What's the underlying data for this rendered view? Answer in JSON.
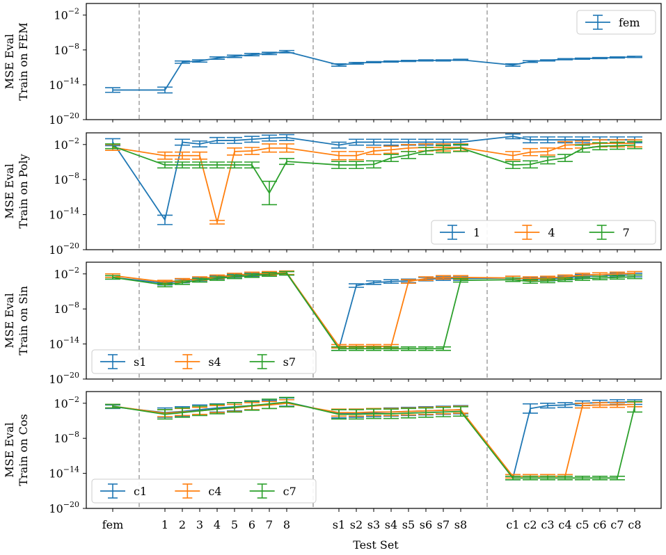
{
  "chart_data": {
    "type": "line",
    "xlabel": "Test Set",
    "x_ticks": [
      "fem",
      "1",
      "2",
      "3",
      "4",
      "5",
      "6",
      "7",
      "8",
      "s1",
      "s2",
      "s3",
      "s4",
      "s5",
      "s6",
      "s7",
      "s8",
      "c1",
      "c2",
      "c3",
      "c4",
      "c5",
      "c6",
      "c7",
      "c8"
    ],
    "y_ticks": [
      {
        "value": -20,
        "label": "10",
        "exp": "−20"
      },
      {
        "value": -14,
        "label": "10",
        "exp": "−14"
      },
      {
        "value": -8,
        "label": "10",
        "exp": "−8"
      },
      {
        "value": -2,
        "label": "10",
        "exp": "−2"
      }
    ],
    "ylim_log10": [
      -20,
      0
    ],
    "separators_after_index": [
      0,
      8,
      16
    ],
    "colors": {
      "blue": "#1f77b4",
      "orange": "#ff7f0e",
      "green": "#2ca02c"
    },
    "panels": [
      {
        "ylabel_line1": "MSE Eval",
        "ylabel_line2": "Train on FEM",
        "legend_position": "top-right",
        "series": [
          {
            "name": "fem",
            "color": "#1f77b4",
            "log10": [
              -14.9,
              null,
              -10.1,
              -9.9,
              -9.4,
              -9.1,
              -8.8,
              -8.6,
              -8.3,
              null,
              -10.3,
              -10.1,
              -10.0,
              -9.9,
              -9.8,
              -9.8,
              -9.7,
              null,
              -10.0,
              -9.8,
              -9.6,
              -9.5,
              -9.4,
              -9.3,
              -9.2
            ],
            "err": [
              0.4,
              0,
              0.2,
              0.2,
              0.2,
              0.2,
              0.2,
              0.2,
              0.2,
              0,
              0.15,
              0.1,
              0.1,
              0.1,
              0.1,
              0.1,
              0.1,
              0,
              0.15,
              0.1,
              0.1,
              0.1,
              0.1,
              0.1,
              0.1
            ],
            "extra_points": [
              {
                "index": 1,
                "log10": -14.9,
                "err": 0.5
              },
              {
                "index": 9,
                "log10": -10.6,
                "err": 0.2
              },
              {
                "index": 17,
                "log10": -10.6,
                "err": 0.2
              }
            ]
          }
        ]
      },
      {
        "ylabel_line1": "MSE Eval",
        "ylabel_line2": "Train on Poly",
        "legend_position": "lower-right",
        "series": [
          {
            "name": "1",
            "color": "#1f77b4",
            "log10": [
              -1.6,
              -14.9,
              -1.6,
              -1.9,
              -1.3,
              -1.3,
              -1.1,
              -0.9,
              -0.8,
              -2.1,
              -1.6,
              -1.6,
              -1.6,
              -1.6,
              -1.6,
              -1.6,
              -1.6,
              -0.6,
              -1.2,
              -1.2,
              -1.2,
              -1.2,
              -1.2,
              -1.2,
              -1.2
            ],
            "err": [
              0.6,
              0.8,
              0.5,
              0.5,
              0.5,
              0.5,
              0.5,
              0.5,
              0.5,
              0.5,
              0.5,
              0.5,
              0.5,
              0.5,
              0.5,
              0.5,
              0.5,
              0.4,
              0.5,
              0.5,
              0.5,
              0.5,
              0.5,
              0.5,
              0.5
            ]
          },
          {
            "name": "4",
            "color": "#ff7f0e",
            "log10": [
              -2.5,
              -3.9,
              -3.9,
              -3.9,
              -15.3,
              -3.2,
              -3.1,
              -2.6,
              -2.6,
              -3.9,
              -3.9,
              -3.1,
              -2.9,
              -2.6,
              -2.5,
              -2.5,
              -2.5,
              -3.9,
              -3.3,
              -3.2,
              -2.1,
              -2.0,
              -1.8,
              -1.8,
              -1.8
            ],
            "err": [
              0.5,
              0.6,
              0.6,
              0.6,
              0.3,
              0.6,
              0.6,
              0.7,
              0.7,
              0.7,
              0.7,
              0.6,
              0.6,
              0.6,
              0.6,
              0.6,
              0.6,
              0.7,
              0.6,
              0.6,
              0.6,
              0.6,
              0.6,
              0.6,
              0.6
            ]
          },
          {
            "name": "7",
            "color": "#2ca02c",
            "log10": [
              -2.3,
              -5.5,
              -5.5,
              -5.5,
              -5.5,
              -5.5,
              -5.5,
              -10.3,
              -4.9,
              -5.5,
              -5.5,
              -5.4,
              -4.3,
              -3.8,
              -3.1,
              -2.8,
              -2.6,
              -5.5,
              -5.4,
              -4.7,
              -4.3,
              -2.7,
              -2.3,
              -2.2,
              -2.1
            ],
            "err": [
              0.4,
              0.5,
              0.5,
              0.5,
              0.5,
              0.5,
              0.5,
              2.0,
              0.5,
              0.6,
              0.6,
              0.6,
              0.6,
              0.6,
              0.6,
              0.6,
              0.6,
              0.6,
              0.6,
              0.6,
              0.6,
              0.6,
              0.6,
              0.6,
              0.6
            ]
          }
        ]
      },
      {
        "ylabel_line1": "MSE Eval",
        "ylabel_line2": "Train on Sin",
        "legend_position": "lower-left",
        "series": [
          {
            "name": "s1",
            "color": "#1f77b4",
            "log10": [
              -2.6,
              -3.6,
              -3.2,
              -2.9,
              -2.6,
              -2.3,
              -2.1,
              -2.0,
              -1.9,
              -14.8,
              -4.0,
              -3.5,
              -3.3,
              -3.2,
              -2.9,
              -2.8,
              -2.8,
              -2.7,
              -2.9,
              -2.9,
              -2.7,
              -2.4,
              -2.4,
              -2.2,
              -2.2
            ],
            "err": [
              0.3,
              0.3,
              0.3,
              0.3,
              0.3,
              0.3,
              0.3,
              0.3,
              0.3,
              0.3,
              0.3,
              0.3,
              0.3,
              0.3,
              0.3,
              0.3,
              0.3,
              0.3,
              0.3,
              0.3,
              0.3,
              0.3,
              0.3,
              0.3,
              0.3
            ]
          },
          {
            "name": "s4",
            "color": "#ff7f0e",
            "log10": [
              -2.3,
              -3.4,
              -3.1,
              -2.8,
              -2.5,
              -2.2,
              -2.0,
              -1.9,
              -1.8,
              -14.4,
              -14.4,
              -14.4,
              -14.4,
              -3.3,
              -2.8,
              -2.6,
              -2.6,
              -2.7,
              -2.8,
              -2.7,
              -2.5,
              -2.2,
              -2.1,
              -2.0,
              -1.9
            ],
            "err": [
              0.3,
              0.3,
              0.3,
              0.3,
              0.3,
              0.3,
              0.3,
              0.3,
              0.3,
              0.3,
              0.3,
              0.3,
              0.3,
              0.3,
              0.3,
              0.3,
              0.3,
              0.3,
              0.3,
              0.3,
              0.3,
              0.3,
              0.3,
              0.3,
              0.3
            ]
          },
          {
            "name": "s7",
            "color": "#2ca02c",
            "log10": [
              -2.6,
              -3.9,
              -3.5,
              -3.1,
              -2.8,
              -2.5,
              -2.3,
              -2.1,
              -1.9,
              -14.8,
              -14.8,
              -14.8,
              -14.8,
              -14.8,
              -14.8,
              -14.8,
              -3.1,
              -3.0,
              -3.3,
              -3.2,
              -3.0,
              -2.8,
              -2.7,
              -2.6,
              -2.5
            ],
            "err": [
              0.3,
              0.3,
              0.3,
              0.3,
              0.3,
              0.3,
              0.3,
              0.3,
              0.3,
              0.3,
              0.3,
              0.3,
              0.3,
              0.3,
              0.3,
              0.3,
              0.3,
              0.3,
              0.3,
              0.3,
              0.3,
              0.3,
              0.3,
              0.3,
              0.3
            ]
          }
        ]
      },
      {
        "ylabel_line1": "MSE Eval",
        "ylabel_line2": "Train on Cos",
        "legend_position": "lower-left",
        "series": [
          {
            "name": "c1",
            "color": "#1f77b4",
            "log10": [
              -2.6,
              -3.6,
              -3.4,
              -3.1,
              -2.8,
              -2.6,
              -2.4,
              -2.2,
              -1.8,
              -3.8,
              -3.7,
              -3.6,
              -3.5,
              -3.4,
              -3.3,
              -3.2,
              -3.1,
              -14.8,
              -2.9,
              -2.4,
              -2.3,
              -2.0,
              -1.9,
              -1.8,
              -1.8
            ],
            "err": [
              0.3,
              0.8,
              0.8,
              0.8,
              0.7,
              0.7,
              0.7,
              0.7,
              0.7,
              0.7,
              0.7,
              0.7,
              0.7,
              0.7,
              0.7,
              0.7,
              0.7,
              0.3,
              0.8,
              0.4,
              0.4,
              0.4,
              0.4,
              0.4,
              0.4
            ]
          },
          {
            "name": "c4",
            "color": "#ff7f0e",
            "log10": [
              -2.5,
              -3.7,
              -3.5,
              -3.3,
              -3.0,
              -2.8,
              -2.5,
              -2.3,
              -2.0,
              -3.6,
              -3.6,
              -3.5,
              -3.5,
              -3.4,
              -3.3,
              -3.2,
              -3.1,
              -14.5,
              -14.5,
              -14.5,
              -14.5,
              -2.4,
              -2.3,
              -2.3,
              -2.2
            ],
            "err": [
              0.3,
              0.6,
              0.6,
              0.6,
              0.6,
              0.6,
              0.6,
              0.6,
              0.6,
              0.6,
              0.6,
              0.6,
              0.6,
              0.6,
              0.6,
              0.6,
              0.6,
              0.3,
              0.3,
              0.3,
              0.3,
              0.4,
              0.4,
              0.4,
              0.4
            ]
          },
          {
            "name": "c7",
            "color": "#2ca02c",
            "log10": [
              -2.5,
              -3.9,
              -3.6,
              -3.3,
              -3.0,
              -2.7,
              -2.4,
              -2.1,
              -1.8,
              -3.9,
              -3.9,
              -3.8,
              -3.8,
              -3.7,
              -3.6,
              -3.5,
              -3.4,
              -14.8,
              -14.8,
              -14.8,
              -14.8,
              -14.8,
              -14.8,
              -14.8,
              -2.6
            ],
            "err": [
              0.3,
              0.8,
              0.8,
              0.8,
              0.8,
              0.8,
              0.8,
              0.8,
              0.8,
              0.8,
              0.8,
              0.8,
              0.8,
              0.8,
              0.8,
              0.8,
              0.8,
              0.3,
              0.3,
              0.3,
              0.3,
              0.3,
              0.3,
              0.3,
              0.9
            ]
          }
        ]
      }
    ]
  }
}
